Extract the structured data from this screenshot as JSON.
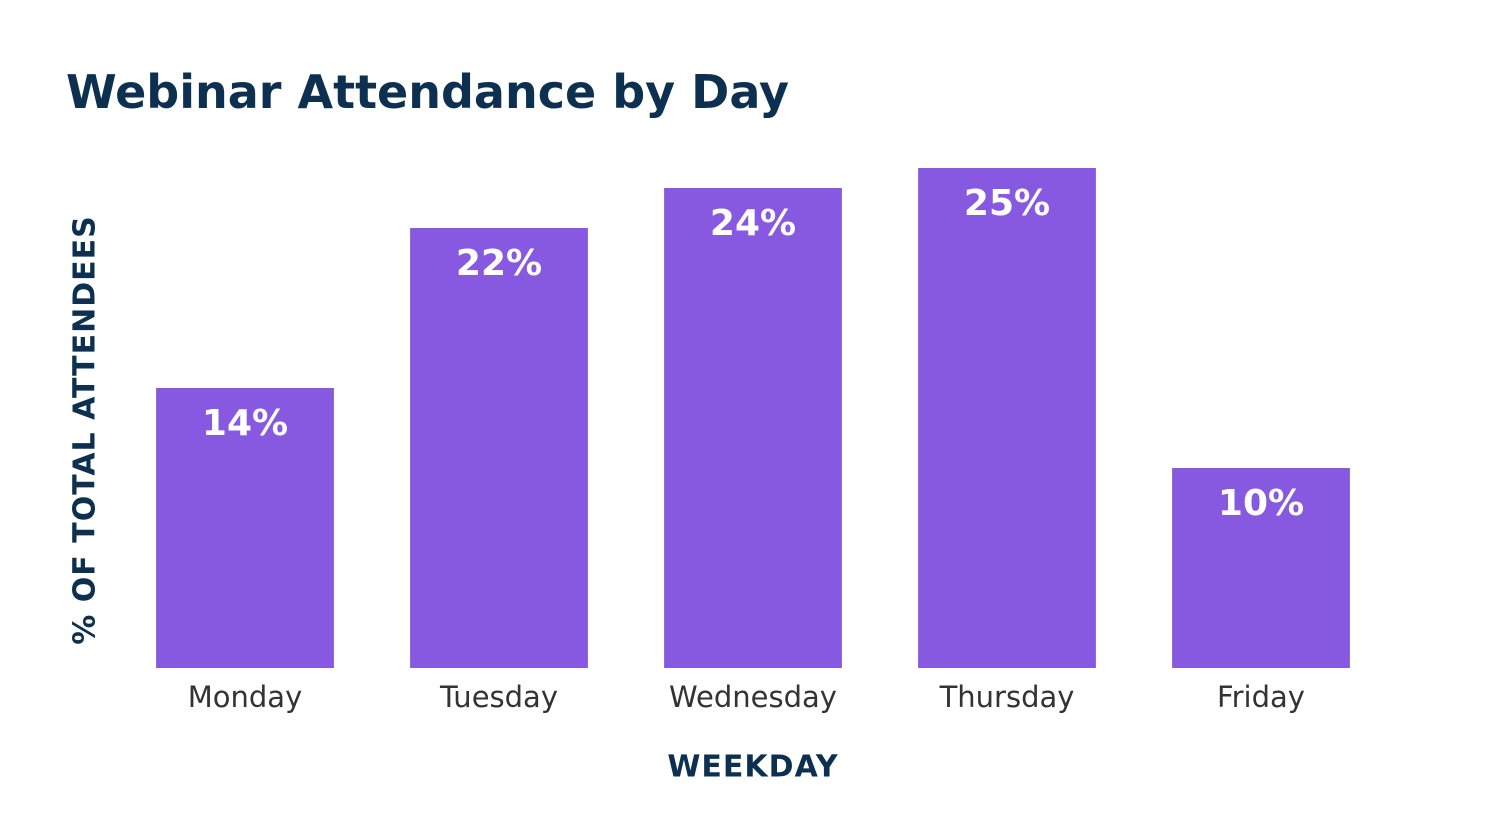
{
  "chart_data": {
    "type": "bar",
    "title": "Webinar Attendance by Day",
    "x_label": "WEEKDAY",
    "y_label": "% OF TOTAL ATTENDEES",
    "categories": [
      "Monday",
      "Tuesday",
      "Wednesday",
      "Thursday",
      "Friday"
    ],
    "values": [
      14,
      22,
      24,
      25,
      10
    ],
    "value_labels": [
      "14%",
      "22%",
      "24%",
      "25%",
      "10%"
    ],
    "color": "#8759e0",
    "grid": false
  }
}
